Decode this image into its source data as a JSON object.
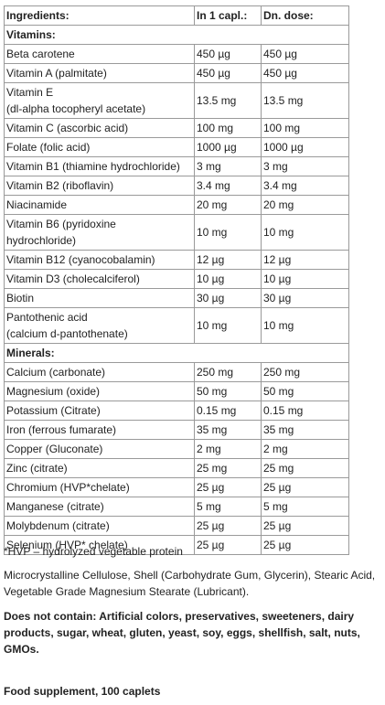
{
  "table": {
    "header": [
      "Ingredients:",
      "In 1 capl.:",
      "Dn. dose:"
    ],
    "rows": [
      [
        "Vitamins:"
      ],
      [
        "Beta carotene",
        "450 µg",
        "450 µg"
      ],
      [
        "Vitamin A (palmitate)",
        "450 µg",
        "450 µg"
      ],
      [
        "Vitamin E\n(dl-alpha tocopheryl acetate)",
        "13.5 mg",
        "13.5 mg"
      ],
      [
        "Vitamin C (ascorbic acid)",
        "100 mg",
        "100 mg"
      ],
      [
        "Folate (folic acid)",
        "1000 µg",
        "1000 µg"
      ],
      [
        "Vitamin B1 (thiamine hydrochloride)",
        "3 mg",
        "3 mg"
      ],
      [
        "Vitamin B2 (riboflavin)",
        "3.4 mg",
        "3.4 mg"
      ],
      [
        "Niacinamide",
        "20 mg",
        "20 mg"
      ],
      [
        "Vitamin B6 (pyridoxine\nhydrochloride)",
        "10 mg",
        "10 mg"
      ],
      [
        "Vitamin B12 (cyanocobalamin)",
        "12 µg",
        "12 µg"
      ],
      [
        "Vitamin D3 (cholecalciferol)",
        "10 µg",
        "10 µg"
      ],
      [
        "Biotin",
        "30 µg",
        "30 µg"
      ],
      [
        "Pantothenic acid\n(calcium d-pantothenate)",
        "10 mg",
        "10 mg"
      ],
      [
        "Minerals:"
      ],
      [
        "Calcium (carbonate)",
        "250 mg",
        "250 mg"
      ],
      [
        "Magnesium (oxide)",
        "50 mg",
        "50 mg"
      ],
      [
        "Potassium (Citrate)",
        "0.15 mg",
        "0.15 mg"
      ],
      [
        "Iron (ferrous fumarate)",
        "35 mg",
        "35 mg"
      ],
      [
        "Copper (Gluconate)",
        "2 mg",
        "2 mg"
      ],
      [
        "Zinc (citrate)",
        "25 mg",
        "25 mg"
      ],
      [
        "Chromium (HVP*chelate)",
        "25 µg",
        "25 µg"
      ],
      [
        "Manganese (citrate)",
        "5 mg",
        "5 mg"
      ],
      [
        "Molybdenum (citrate)",
        "25 µg",
        "25 µg"
      ],
      [
        "Selenium (HVP* chelate)",
        "25 µg",
        "25 µg"
      ]
    ]
  },
  "footnote": "*HVP – hydrolyzed vegetable protein",
  "other_ingredients": "Microcrystalline Cellulose, Shell (Carbohydrate Gum, Glycerin), Stearic Acid, Vegetable Grade Magnesium Stearate (Lubricant).",
  "warning": {
    "label": "Does not contain:",
    "text": "Artificial colors, preservatives, sweeteners, dairy products, sugar, wheat, gluten, yeast, soy, eggs, shellfish, salt, nuts, GMOs."
  },
  "product": "Food supplement, 100 caplets"
}
